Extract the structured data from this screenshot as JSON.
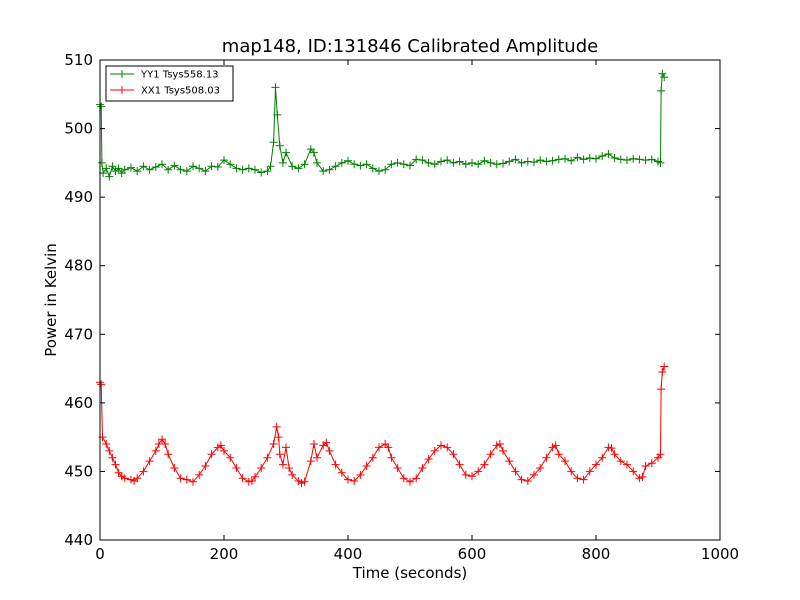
{
  "chart_data": {
    "type": "line",
    "title": "map148, ID:131846 Calibrated Amplitude",
    "xlabel": "Time (seconds)",
    "ylabel": "Power in Kelvin",
    "xlim": [
      0,
      1000
    ],
    "ylim": [
      440,
      510
    ],
    "xticks": [
      "0",
      "200",
      "400",
      "600",
      "800",
      "1000"
    ],
    "yticks": [
      "440",
      "450",
      "460",
      "470",
      "480",
      "490",
      "500",
      "510"
    ],
    "legend_position": "top-left",
    "grid": false,
    "series": [
      {
        "name": "YY1 Tsys558.13",
        "color": "#008000",
        "marker": "+",
        "points": [
          [
            0,
            503.5
          ],
          [
            2,
            503.2
          ],
          [
            3,
            495.0
          ],
          [
            5,
            493.5
          ],
          [
            10,
            494.2
          ],
          [
            15,
            493.0
          ],
          [
            20,
            494.5
          ],
          [
            25,
            493.8
          ],
          [
            30,
            494.2
          ],
          [
            35,
            493.5
          ],
          [
            40,
            494.0
          ],
          [
            50,
            494.3
          ],
          [
            60,
            493.8
          ],
          [
            70,
            494.5
          ],
          [
            80,
            494.0
          ],
          [
            90,
            494.4
          ],
          [
            100,
            494.8
          ],
          [
            110,
            494.0
          ],
          [
            120,
            494.6
          ],
          [
            130,
            494.0
          ],
          [
            140,
            493.8
          ],
          [
            150,
            494.5
          ],
          [
            160,
            494.2
          ],
          [
            170,
            493.8
          ],
          [
            180,
            494.5
          ],
          [
            190,
            494.4
          ],
          [
            200,
            495.4
          ],
          [
            210,
            494.8
          ],
          [
            220,
            494.2
          ],
          [
            230,
            494.0
          ],
          [
            240,
            494.2
          ],
          [
            250,
            494.0
          ],
          [
            260,
            493.6
          ],
          [
            270,
            493.8
          ],
          [
            275,
            494.5
          ],
          [
            280,
            498.0
          ],
          [
            283,
            506.0
          ],
          [
            286,
            502.0
          ],
          [
            290,
            497.5
          ],
          [
            295,
            495.0
          ],
          [
            300,
            496.5
          ],
          [
            310,
            494.5
          ],
          [
            320,
            494.2
          ],
          [
            330,
            494.8
          ],
          [
            340,
            497.0
          ],
          [
            345,
            496.5
          ],
          [
            350,
            495.0
          ],
          [
            360,
            493.8
          ],
          [
            370,
            494.0
          ],
          [
            380,
            494.5
          ],
          [
            390,
            495.0
          ],
          [
            400,
            495.3
          ],
          [
            410,
            494.8
          ],
          [
            420,
            494.6
          ],
          [
            430,
            494.8
          ],
          [
            440,
            494.2
          ],
          [
            450,
            493.8
          ],
          [
            460,
            494.0
          ],
          [
            470,
            494.8
          ],
          [
            480,
            495.0
          ],
          [
            490,
            494.8
          ],
          [
            500,
            494.6
          ],
          [
            510,
            495.5
          ],
          [
            520,
            495.4
          ],
          [
            530,
            495.0
          ],
          [
            540,
            494.8
          ],
          [
            550,
            495.2
          ],
          [
            560,
            495.4
          ],
          [
            570,
            495.0
          ],
          [
            580,
            495.2
          ],
          [
            590,
            494.8
          ],
          [
            600,
            495.0
          ],
          [
            610,
            494.8
          ],
          [
            620,
            495.3
          ],
          [
            630,
            495.0
          ],
          [
            640,
            494.8
          ],
          [
            650,
            494.9
          ],
          [
            660,
            495.2
          ],
          [
            670,
            495.5
          ],
          [
            680,
            495.0
          ],
          [
            690,
            495.2
          ],
          [
            700,
            495.1
          ],
          [
            710,
            495.4
          ],
          [
            720,
            495.2
          ],
          [
            730,
            495.3
          ],
          [
            740,
            495.5
          ],
          [
            750,
            495.6
          ],
          [
            760,
            495.3
          ],
          [
            770,
            495.8
          ],
          [
            780,
            495.5
          ],
          [
            790,
            495.7
          ],
          [
            800,
            495.6
          ],
          [
            810,
            496.0
          ],
          [
            820,
            496.3
          ],
          [
            830,
            495.7
          ],
          [
            840,
            495.5
          ],
          [
            850,
            495.4
          ],
          [
            860,
            495.6
          ],
          [
            870,
            495.5
          ],
          [
            880,
            495.4
          ],
          [
            890,
            495.5
          ],
          [
            900,
            495.2
          ],
          [
            904,
            495.0
          ],
          [
            905,
            505.5
          ],
          [
            907,
            508.0
          ],
          [
            910,
            507.5
          ]
        ]
      },
      {
        "name": "XX1 Tsys508.03",
        "color": "#ff0000",
        "marker": "+",
        "points": [
          [
            0,
            463.0
          ],
          [
            2,
            462.7
          ],
          [
            4,
            455.0
          ],
          [
            10,
            454.0
          ],
          [
            15,
            453.0
          ],
          [
            20,
            452.0
          ],
          [
            25,
            451.0
          ],
          [
            30,
            449.8
          ],
          [
            35,
            449.3
          ],
          [
            40,
            449.0
          ],
          [
            50,
            448.8
          ],
          [
            55,
            448.6
          ],
          [
            60,
            449.0
          ],
          [
            70,
            450.0
          ],
          [
            80,
            451.5
          ],
          [
            90,
            453.0
          ],
          [
            95,
            454.0
          ],
          [
            100,
            454.7
          ],
          [
            105,
            454.0
          ],
          [
            110,
            452.5
          ],
          [
            120,
            450.5
          ],
          [
            130,
            449.0
          ],
          [
            140,
            448.8
          ],
          [
            150,
            448.5
          ],
          [
            160,
            449.5
          ],
          [
            170,
            450.8
          ],
          [
            180,
            452.5
          ],
          [
            190,
            453.5
          ],
          [
            195,
            453.8
          ],
          [
            200,
            453.0
          ],
          [
            210,
            452.0
          ],
          [
            220,
            450.5
          ],
          [
            230,
            449.0
          ],
          [
            240,
            448.5
          ],
          [
            245,
            448.6
          ],
          [
            250,
            449.2
          ],
          [
            260,
            450.5
          ],
          [
            270,
            452.0
          ],
          [
            280,
            454.0
          ],
          [
            285,
            456.5
          ],
          [
            288,
            455.0
          ],
          [
            290,
            452.5
          ],
          [
            295,
            451.0
          ],
          [
            300,
            453.5
          ],
          [
            305,
            450.5
          ],
          [
            310,
            449.5
          ],
          [
            320,
            448.6
          ],
          [
            325,
            448.3
          ],
          [
            330,
            448.5
          ],
          [
            340,
            451.5
          ],
          [
            345,
            454.0
          ],
          [
            350,
            452.0
          ],
          [
            360,
            453.8
          ],
          [
            365,
            454.2
          ],
          [
            370,
            453.0
          ],
          [
            380,
            451.0
          ],
          [
            390,
            449.8
          ],
          [
            400,
            448.8
          ],
          [
            410,
            448.6
          ],
          [
            420,
            449.5
          ],
          [
            430,
            450.8
          ],
          [
            440,
            452.0
          ],
          [
            450,
            453.5
          ],
          [
            460,
            454.0
          ],
          [
            465,
            453.5
          ],
          [
            470,
            452.0
          ],
          [
            480,
            450.5
          ],
          [
            490,
            449.0
          ],
          [
            500,
            448.5
          ],
          [
            510,
            449.0
          ],
          [
            520,
            450.5
          ],
          [
            530,
            451.8
          ],
          [
            540,
            453.0
          ],
          [
            550,
            453.8
          ],
          [
            560,
            453.5
          ],
          [
            570,
            452.5
          ],
          [
            580,
            451.0
          ],
          [
            590,
            449.5
          ],
          [
            600,
            449.3
          ],
          [
            610,
            450.0
          ],
          [
            620,
            451.0
          ],
          [
            630,
            452.5
          ],
          [
            640,
            453.8
          ],
          [
            645,
            454.0
          ],
          [
            650,
            453.0
          ],
          [
            660,
            451.5
          ],
          [
            670,
            450.0
          ],
          [
            680,
            448.8
          ],
          [
            690,
            448.6
          ],
          [
            700,
            449.5
          ],
          [
            710,
            450.5
          ],
          [
            720,
            452.0
          ],
          [
            730,
            453.5
          ],
          [
            735,
            453.8
          ],
          [
            740,
            452.5
          ],
          [
            750,
            451.5
          ],
          [
            760,
            450.0
          ],
          [
            770,
            449.0
          ],
          [
            780,
            448.8
          ],
          [
            790,
            450.0
          ],
          [
            800,
            451.0
          ],
          [
            810,
            452.0
          ],
          [
            820,
            453.5
          ],
          [
            825,
            453.4
          ],
          [
            830,
            452.5
          ],
          [
            840,
            451.5
          ],
          [
            850,
            451.0
          ],
          [
            860,
            450.0
          ],
          [
            870,
            449.0
          ],
          [
            875,
            449.2
          ],
          [
            880,
            450.8
          ],
          [
            890,
            451.2
          ],
          [
            900,
            452.0
          ],
          [
            904,
            452.5
          ],
          [
            905,
            462.0
          ],
          [
            907,
            464.5
          ],
          [
            910,
            465.3
          ]
        ]
      }
    ]
  }
}
